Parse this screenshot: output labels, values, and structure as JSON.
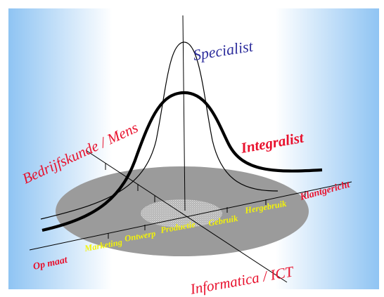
{
  "labels": {
    "specialist": "Specialist",
    "integralist": "Integralist",
    "axis_left": "Bedrijfskunde / Mens",
    "axis_front": "Informatica / ICT",
    "axis_right": "Klantgericht",
    "axis_op_maat": "Op maat",
    "marketing": "Marketing",
    "ontwerp": "Ontwerp",
    "productie": "Productie",
    "gebruik": "Gebruik",
    "hergebruik": "Hergebruik"
  },
  "colors": {
    "background_edge": "#8fc4f3",
    "background_center": "#ffffff",
    "disc": "#9b9b9b",
    "inner_disc": "#c4c4c4",
    "label_red": "#e8112d",
    "label_blue": "#2d2d9c",
    "label_yellow": "#f2f20a",
    "curve": "#000000"
  }
}
